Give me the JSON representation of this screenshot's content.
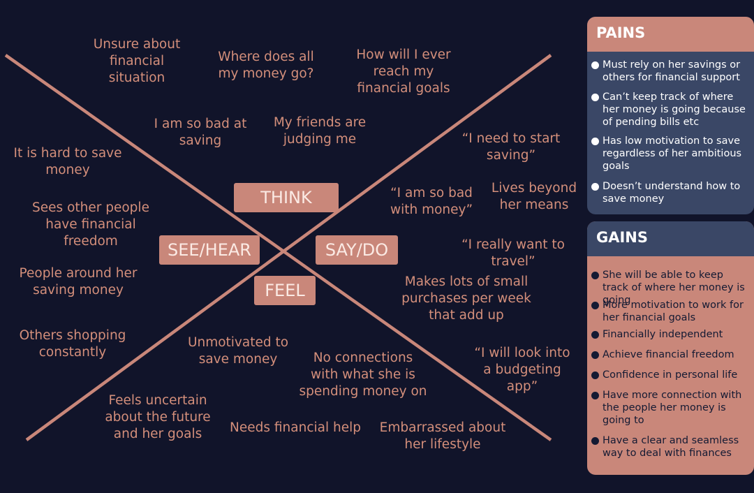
{
  "quadrants": {
    "think": "THINK",
    "see_hear": "SEE/HEAR",
    "say_do": "SAY/DO",
    "feel": "FEEL"
  },
  "think_notes": [
    "Unsure about\nfinancial\nsituation",
    "Where does all\nmy money go?",
    "How will I ever\nreach my\nfinancial goals",
    "I am so bad at\nsaving",
    "My friends are\njudging me"
  ],
  "see_hear_notes": [
    "It is hard to save\nmoney",
    "Sees other people\nhave financial\nfreedom",
    "People around her\nsaving money",
    "Others shopping\nconstantly"
  ],
  "say_do_notes": [
    "“I need to start\nsaving”",
    "“I am so bad\nwith money”",
    "Lives beyond\nher means",
    "“I really want to\ntravel”",
    "Makes lots of small\npurchases per week\nthat add up",
    "“I will look into\na budgeting\napp”"
  ],
  "feel_notes": [
    "Unmotivated to\nsave money",
    "No connections\nwith what she is\nspending money on",
    "Feels uncertain\nabout the future\nand her goals",
    "Needs financial help",
    "Embarrassed about\nher lifestyle"
  ],
  "pains": {
    "title": "PAINS",
    "items": [
      "Must rely on her savings or others for financial support",
      "Can’t keep track of where her money is going because of pending bills etc",
      "Has low motivation to save regardless of her ambitious goals",
      "Doesn’t understand how to save money"
    ]
  },
  "gains": {
    "title": "GAINS",
    "items": [
      "She will be able to keep track of where her money is going",
      "More motivation to work for her financial goals",
      "Financially independent",
      "Achieve financial freedom",
      "Confidence in personal life",
      "Have more connection with the people her money is going to",
      "Have a clear and seamless way to deal with finances"
    ]
  },
  "colors": {
    "background": "#11142a",
    "accent": "#c9877a",
    "note_text": "#d48f7b",
    "panel_dark": "#3a4766"
  }
}
